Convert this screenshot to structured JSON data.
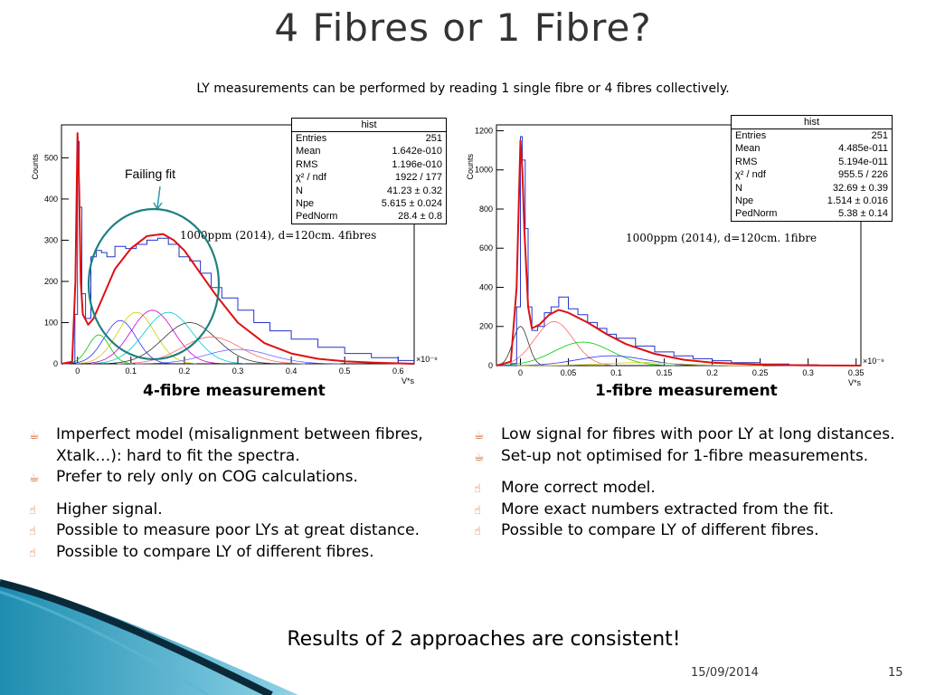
{
  "slide": {
    "title": "4 Fibres or 1 Fibre?",
    "subtitle": "LY measurements can be performed by reading 1 single fibre or 4 fibres collectively.",
    "conclusion": "Results of 2 approaches are consistent!",
    "date": "15/09/2014",
    "page": "15",
    "accent_color": "#d0622a"
  },
  "left": {
    "caption": "4-fibre measurement",
    "plot_label": "1000ppm (2014), d=120cm. 4fibres",
    "annotation": "Failing fit",
    "cons_icon": "hand-down-icon",
    "pros_icon": "hand-up-icon",
    "cons": [
      "Imperfect model (misalignment between fibres, Xtalk…): hard to fit the spectra.",
      "Prefer to rely only on COG calculations."
    ],
    "pros": [
      "Higher signal.",
      "Possible to measure poor LYs at great distance.",
      "Possible to compare LY of different fibres."
    ]
  },
  "right": {
    "caption": "1-fibre measurement",
    "plot_label": "1000ppm (2014), d=120cm. 1fibre",
    "cons": [
      "Low signal for fibres with poor LY at long distances.",
      "Set-up not optimised for 1-fibre measurements."
    ],
    "pros": [
      "More correct model.",
      "More exact numbers extracted from the fit.",
      "Possible to compare LY of different fibres."
    ]
  },
  "chart_data": [
    {
      "type": "line",
      "title": "",
      "xlabel": "V*s",
      "ylabel": "Counts",
      "x_exponent": "×10⁻⁹",
      "xlim": [
        -0.03,
        0.63
      ],
      "ylim": [
        0,
        580
      ],
      "xticks": [
        0,
        0.1,
        0.2,
        0.3,
        0.4,
        0.5,
        0.6
      ],
      "xticklabels": [
        "0",
        "0.1",
        "0.2",
        "0.3",
        "0.4",
        "0.5",
        "0.6"
      ],
      "yticks": [
        0,
        100,
        200,
        300,
        400,
        500
      ],
      "yticklabels": [
        "0",
        "100",
        "200",
        "300",
        "400",
        "500"
      ],
      "stats_box": {
        "name": "hist",
        "rows": [
          {
            "k": "Entries",
            "v": "251"
          },
          {
            "k": "Mean",
            "v": "1.642e-010"
          },
          {
            "k": "RMS",
            "v": "1.196e-010"
          },
          {
            "k": "χ² / ndf",
            "v": "1922 / 177"
          },
          {
            "k": "N",
            "v": "41.23 ± 0.32"
          },
          {
            "k": "Npe",
            "v": "5.615 ± 0.024"
          },
          {
            "k": "PedNorm",
            "v": "28.4 ± 0.8"
          }
        ]
      },
      "histogram": {
        "x": [
          -0.025,
          -0.015,
          -0.005,
          0,
          0.003,
          0.008,
          0.015,
          0.025,
          0.035,
          0.045,
          0.055,
          0.07,
          0.09,
          0.11,
          0.13,
          0.15,
          0.17,
          0.19,
          0.21,
          0.23,
          0.25,
          0.27,
          0.3,
          0.33,
          0.36,
          0.4,
          0.45,
          0.5,
          0.55,
          0.6
        ],
        "y": [
          0,
          2,
          120,
          540,
          380,
          170,
          110,
          260,
          275,
          270,
          260,
          285,
          280,
          290,
          300,
          305,
          290,
          260,
          250,
          220,
          185,
          160,
          130,
          100,
          80,
          60,
          40,
          25,
          15,
          8
        ]
      },
      "fit_total": {
        "x": [
          -0.03,
          -0.01,
          -0.004,
          0,
          0.003,
          0.006,
          0.01,
          0.02,
          0.03,
          0.05,
          0.07,
          0.1,
          0.13,
          0.16,
          0.18,
          0.2,
          0.23,
          0.26,
          0.3,
          0.35,
          0.4,
          0.45,
          0.5,
          0.55,
          0.6,
          0.63
        ],
        "y": [
          0,
          5,
          200,
          560,
          430,
          200,
          120,
          95,
          110,
          170,
          230,
          280,
          310,
          315,
          300,
          275,
          220,
          165,
          100,
          50,
          25,
          12,
          6,
          3,
          1,
          0
        ]
      },
      "components": [
        {
          "mu": 0.04,
          "height": 70,
          "sigma": 0.02,
          "color": "#00cc00"
        },
        {
          "mu": 0.08,
          "height": 105,
          "sigma": 0.03,
          "color": "#3333ff"
        },
        {
          "mu": 0.11,
          "height": 125,
          "sigma": 0.035,
          "color": "#cccc00"
        },
        {
          "mu": 0.14,
          "height": 130,
          "sigma": 0.04,
          "color": "#cc00cc"
        },
        {
          "mu": 0.17,
          "height": 125,
          "sigma": 0.045,
          "color": "#00cccc"
        },
        {
          "mu": 0.21,
          "height": 100,
          "sigma": 0.05,
          "color": "#333333"
        },
        {
          "mu": 0.25,
          "height": 65,
          "sigma": 0.055,
          "color": "#ff6666"
        },
        {
          "mu": 0.3,
          "height": 35,
          "sigma": 0.06,
          "color": "#6666ff"
        }
      ]
    },
    {
      "type": "line",
      "title": "",
      "xlabel": "V*s",
      "ylabel": "Counts",
      "x_exponent": "×10⁻⁹",
      "xlim": [
        -0.025,
        0.355
      ],
      "ylim": [
        0,
        1230
      ],
      "xticks": [
        0,
        0.05,
        0.1,
        0.15,
        0.2,
        0.25,
        0.3,
        0.35
      ],
      "xticklabels": [
        "0",
        "0.05",
        "0.1",
        "0.15",
        "0.2",
        "0.25",
        "0.3",
        "0.35"
      ],
      "yticks": [
        0,
        200,
        400,
        600,
        800,
        1000,
        1200
      ],
      "yticklabels": [
        "0",
        "200",
        "400",
        "600",
        "800",
        "1000",
        "1200"
      ],
      "stats_box": {
        "name": "hist",
        "rows": [
          {
            "k": "Entries",
            "v": "251"
          },
          {
            "k": "Mean",
            "v": "4.485e-011"
          },
          {
            "k": "RMS",
            "v": "5.194e-011"
          },
          {
            "k": "χ² / ndf",
            "v": "955.5 / 226"
          },
          {
            "k": "N",
            "v": "32.69 ± 0.39"
          },
          {
            "k": "Npe",
            "v": "1.514 ± 0.016"
          },
          {
            "k": "PedNorm",
            "v": "5.38 ± 0.14"
          }
        ]
      },
      "histogram": {
        "x": [
          -0.02,
          -0.01,
          -0.004,
          0,
          0.002,
          0.005,
          0.008,
          0.012,
          0.018,
          0.025,
          0.032,
          0.04,
          0.05,
          0.06,
          0.07,
          0.08,
          0.09,
          0.1,
          0.12,
          0.14,
          0.16,
          0.18,
          0.2,
          0.22,
          0.25,
          0.28,
          0.31,
          0.34
        ],
        "y": [
          0,
          10,
          300,
          1170,
          1050,
          700,
          300,
          180,
          200,
          270,
          300,
          350,
          290,
          260,
          220,
          190,
          160,
          140,
          100,
          70,
          50,
          35,
          25,
          15,
          8,
          4,
          2,
          1
        ]
      },
      "fit_total": {
        "x": [
          -0.025,
          -0.01,
          -0.004,
          0,
          0.002,
          0.004,
          0.008,
          0.012,
          0.02,
          0.03,
          0.04,
          0.05,
          0.07,
          0.09,
          0.11,
          0.14,
          0.17,
          0.2,
          0.25,
          0.3,
          0.355
        ],
        "y": [
          0,
          20,
          400,
          1150,
          1000,
          700,
          300,
          190,
          210,
          260,
          285,
          270,
          220,
          160,
          110,
          60,
          30,
          15,
          5,
          1,
          0
        ]
      },
      "components": [
        {
          "mu": 0.0,
          "height": 200,
          "sigma": 0.008,
          "color": "#333333"
        },
        {
          "mu": 0.035,
          "height": 225,
          "sigma": 0.02,
          "color": "#ff6666"
        },
        {
          "mu": 0.065,
          "height": 120,
          "sigma": 0.03,
          "color": "#00cc00"
        },
        {
          "mu": 0.095,
          "height": 50,
          "sigma": 0.035,
          "color": "#3333ff"
        },
        {
          "mu": 0.125,
          "height": 15,
          "sigma": 0.04,
          "color": "#cccc00"
        }
      ]
    }
  ]
}
